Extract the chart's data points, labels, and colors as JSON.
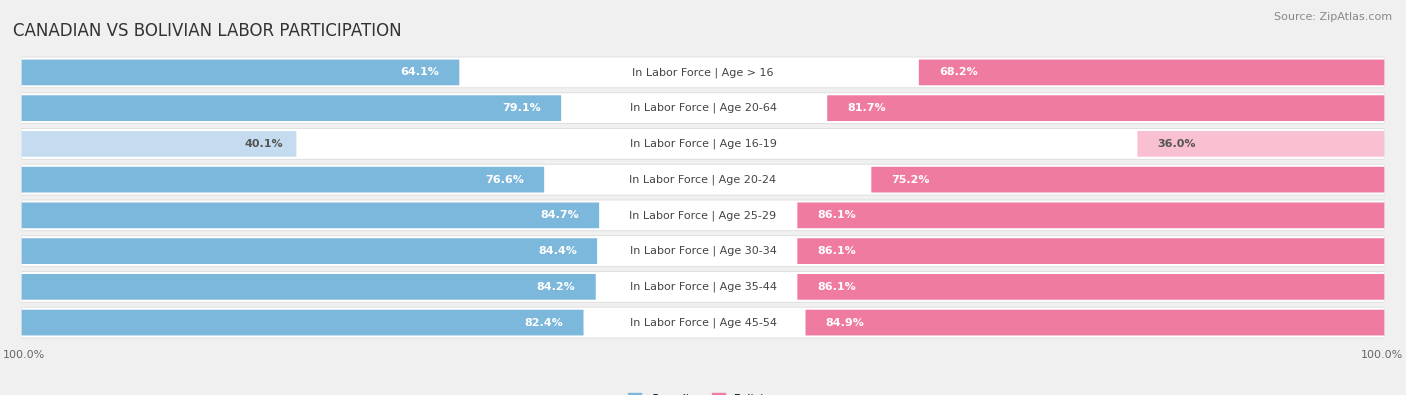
{
  "title": "CANADIAN VS BOLIVIAN LABOR PARTICIPATION",
  "source": "Source: ZipAtlas.com",
  "categories": [
    "In Labor Force | Age > 16",
    "In Labor Force | Age 20-64",
    "In Labor Force | Age 16-19",
    "In Labor Force | Age 20-24",
    "In Labor Force | Age 25-29",
    "In Labor Force | Age 30-34",
    "In Labor Force | Age 35-44",
    "In Labor Force | Age 45-54"
  ],
  "canadian_values": [
    64.1,
    79.1,
    40.1,
    76.6,
    84.7,
    84.4,
    84.2,
    82.4
  ],
  "bolivian_values": [
    68.2,
    81.7,
    36.0,
    75.2,
    86.1,
    86.1,
    86.1,
    84.9
  ],
  "canadian_color": "#7CB8DC",
  "bolivian_color": "#F07BA0",
  "canadian_color_light": "#C5DCF0",
  "bolivian_color_light": "#F8C0D0",
  "background_color": "#f0f0f0",
  "row_bg_color": "#e8e8e8",
  "row_inner_color": "#ffffff",
  "max_value": 100.0,
  "legend_canadian": "Canadian",
  "legend_bolivian": "Bolivian",
  "title_fontsize": 12,
  "source_fontsize": 8,
  "label_fontsize": 8,
  "bar_label_fontsize": 8,
  "category_fontsize": 8,
  "axis_label_color": "#666666",
  "title_color": "#333333",
  "category_label_color": "#444444"
}
